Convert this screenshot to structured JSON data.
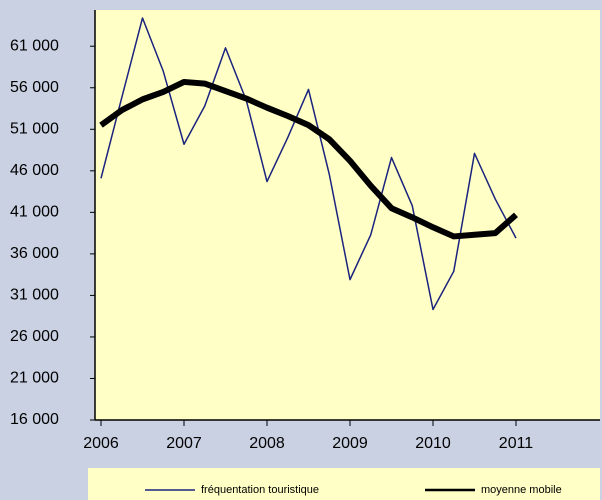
{
  "chart_data": {
    "type": "line",
    "x": [
      2006,
      2006.25,
      2006.5,
      2006.75,
      2007,
      2007.25,
      2007.5,
      2007.75,
      2008,
      2008.25,
      2008.5,
      2008.75,
      2009,
      2009.25,
      2009.5,
      2009.75,
      2010,
      2010.25,
      2010.5,
      2010.75,
      2011
    ],
    "series": [
      {
        "name": "fréquentation touristique",
        "color": "#1a237e",
        "width": 1.5,
        "values": [
          45100,
          54800,
          64400,
          58000,
          49200,
          53800,
          60800,
          54500,
          44700,
          50000,
          55800,
          45600,
          32900,
          38300,
          47600,
          41800,
          29300,
          33900,
          48100,
          42600,
          37900
        ]
      },
      {
        "name": "moyenne mobile",
        "color": "#000000",
        "width": 6,
        "values": [
          51500,
          53300,
          54600,
          55500,
          56700,
          56500,
          55600,
          54700,
          53600,
          52600,
          51500,
          49800,
          47200,
          44200,
          41500,
          40400,
          39200,
          38100,
          38300,
          38500,
          40700
        ]
      }
    ],
    "xlim": [
      2006,
      2012
    ],
    "xticks": [
      2006,
      2007,
      2008,
      2009,
      2010,
      2011
    ],
    "ylim": [
      16000,
      65000
    ],
    "yticks": [
      {
        "value": 16000,
        "label": "16 000"
      },
      {
        "value": 21000,
        "label": "21 000"
      },
      {
        "value": 26000,
        "label": "26 000"
      },
      {
        "value": 31000,
        "label": "31 000"
      },
      {
        "value": 36000,
        "label": "36 000"
      },
      {
        "value": 41000,
        "label": "41 000"
      },
      {
        "value": 46000,
        "label": "46 000"
      },
      {
        "value": 51000,
        "label": "51 000"
      },
      {
        "value": 56000,
        "label": "56 000"
      },
      {
        "value": 61000,
        "label": "61 000"
      }
    ],
    "grid": false,
    "legend": "bottom"
  }
}
